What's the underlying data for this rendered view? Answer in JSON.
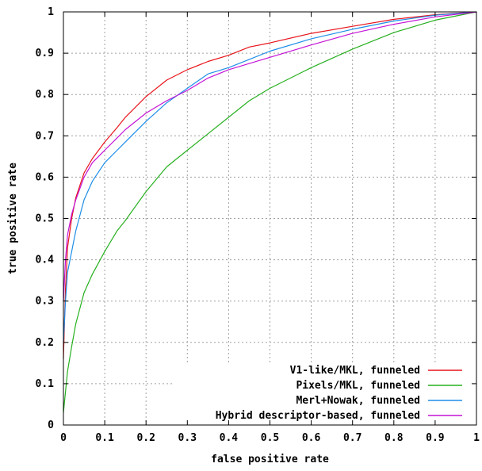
{
  "chart_data": {
    "type": "line",
    "title": "",
    "xlabel": "false positive rate",
    "ylabel": "true positive rate",
    "xlim": [
      0,
      1
    ],
    "ylim": [
      0,
      1
    ],
    "x_ticks": [
      "0",
      "0.1",
      "0.2",
      "0.3",
      "0.4",
      "0.5",
      "0.6",
      "0.7",
      "0.8",
      "0.9",
      "1"
    ],
    "y_ticks": [
      "0",
      "0.1",
      "0.2",
      "0.3",
      "0.4",
      "0.5",
      "0.6",
      "0.7",
      "0.8",
      "0.9",
      "1"
    ],
    "grid": true,
    "legend_position": "bottom-right",
    "series": [
      {
        "name": "V1-like/MKL, funneled",
        "color": "#e8141b",
        "points": [
          [
            0,
            0.16
          ],
          [
            0.005,
            0.33
          ],
          [
            0.01,
            0.43
          ],
          [
            0.02,
            0.5
          ],
          [
            0.03,
            0.55
          ],
          [
            0.05,
            0.61
          ],
          [
            0.07,
            0.645
          ],
          [
            0.1,
            0.685
          ],
          [
            0.13,
            0.72
          ],
          [
            0.15,
            0.745
          ],
          [
            0.2,
            0.795
          ],
          [
            0.25,
            0.835
          ],
          [
            0.3,
            0.86
          ],
          [
            0.35,
            0.88
          ],
          [
            0.4,
            0.895
          ],
          [
            0.45,
            0.915
          ],
          [
            0.5,
            0.925
          ],
          [
            0.6,
            0.948
          ],
          [
            0.7,
            0.965
          ],
          [
            0.8,
            0.982
          ],
          [
            0.9,
            0.993
          ],
          [
            1,
            1
          ]
        ]
      },
      {
        "name": "Pixels/MKL, funneled",
        "color": "#27b01f",
        "points": [
          [
            0,
            0.03
          ],
          [
            0.005,
            0.08
          ],
          [
            0.01,
            0.13
          ],
          [
            0.02,
            0.19
          ],
          [
            0.03,
            0.245
          ],
          [
            0.05,
            0.32
          ],
          [
            0.07,
            0.365
          ],
          [
            0.1,
            0.42
          ],
          [
            0.13,
            0.47
          ],
          [
            0.15,
            0.495
          ],
          [
            0.2,
            0.565
          ],
          [
            0.25,
            0.625
          ],
          [
            0.3,
            0.665
          ],
          [
            0.35,
            0.705
          ],
          [
            0.4,
            0.745
          ],
          [
            0.45,
            0.785
          ],
          [
            0.5,
            0.815
          ],
          [
            0.6,
            0.865
          ],
          [
            0.7,
            0.91
          ],
          [
            0.8,
            0.95
          ],
          [
            0.9,
            0.98
          ],
          [
            1,
            1
          ]
        ]
      },
      {
        "name": "Merl+Nowak, funneled",
        "color": "#1e8ee8",
        "points": [
          [
            0,
            0.2
          ],
          [
            0.005,
            0.3
          ],
          [
            0.01,
            0.37
          ],
          [
            0.02,
            0.42
          ],
          [
            0.03,
            0.47
          ],
          [
            0.05,
            0.545
          ],
          [
            0.07,
            0.59
          ],
          [
            0.1,
            0.635
          ],
          [
            0.13,
            0.665
          ],
          [
            0.15,
            0.685
          ],
          [
            0.2,
            0.735
          ],
          [
            0.25,
            0.78
          ],
          [
            0.3,
            0.815
          ],
          [
            0.35,
            0.85
          ],
          [
            0.4,
            0.865
          ],
          [
            0.45,
            0.885
          ],
          [
            0.5,
            0.905
          ],
          [
            0.6,
            0.935
          ],
          [
            0.7,
            0.958
          ],
          [
            0.8,
            0.978
          ],
          [
            0.9,
            0.992
          ],
          [
            1,
            1
          ]
        ]
      },
      {
        "name": "Hybrid descriptor-based, funneled",
        "color": "#c414d6",
        "points": [
          [
            0,
            0.3
          ],
          [
            0.005,
            0.4
          ],
          [
            0.01,
            0.46
          ],
          [
            0.02,
            0.51
          ],
          [
            0.03,
            0.545
          ],
          [
            0.05,
            0.6
          ],
          [
            0.07,
            0.635
          ],
          [
            0.1,
            0.665
          ],
          [
            0.13,
            0.695
          ],
          [
            0.15,
            0.715
          ],
          [
            0.2,
            0.755
          ],
          [
            0.25,
            0.785
          ],
          [
            0.3,
            0.81
          ],
          [
            0.35,
            0.84
          ],
          [
            0.4,
            0.86
          ],
          [
            0.45,
            0.875
          ],
          [
            0.5,
            0.89
          ],
          [
            0.6,
            0.92
          ],
          [
            0.7,
            0.948
          ],
          [
            0.8,
            0.97
          ],
          [
            0.9,
            0.988
          ],
          [
            1,
            1
          ]
        ]
      }
    ]
  }
}
